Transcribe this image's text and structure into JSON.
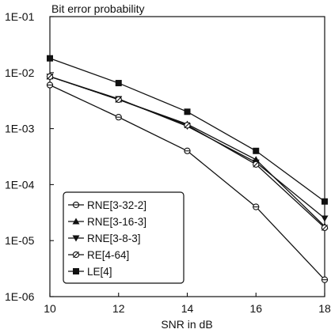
{
  "chart_data": {
    "type": "line",
    "title": "Bit error probability",
    "xlabel": "SNR in dB",
    "ylabel": "",
    "y_scale": "log",
    "xlim": [
      10,
      18
    ],
    "ylim": [
      1e-06,
      0.1
    ],
    "x_ticks": [
      {
        "value": 10,
        "label": "10"
      },
      {
        "value": 12,
        "label": "12"
      },
      {
        "value": 14,
        "label": "14"
      },
      {
        "value": 16,
        "label": "16"
      },
      {
        "value": 18,
        "label": "18"
      }
    ],
    "y_ticks": [
      {
        "value": 0.1,
        "label": "1E-01"
      },
      {
        "value": 0.01,
        "label": "1E-02"
      },
      {
        "value": 0.001,
        "label": "1E-03"
      },
      {
        "value": 0.0001,
        "label": "1E-04"
      },
      {
        "value": 1e-05,
        "label": "1E-05"
      },
      {
        "value": 1e-06,
        "label": "1E-06"
      }
    ],
    "grid": false,
    "legend_position": "bottom-left",
    "x": [
      10,
      12,
      14,
      16,
      18
    ],
    "series": [
      {
        "name": "RNE[3-32-2]",
        "marker": "circle-dash",
        "values": [
          0.006,
          0.0016,
          0.0004,
          4e-05,
          2e-06
        ]
      },
      {
        "name": "RNE[3-16-3]",
        "marker": "triangle-up",
        "values": [
          0.0085,
          0.0033,
          0.0012,
          0.00028,
          1.8e-05
        ]
      },
      {
        "name": "RNE[3-8-3]",
        "marker": "triangle-down",
        "values": [
          0.0085,
          0.0034,
          0.0011,
          0.00025,
          2.5e-05
        ]
      },
      {
        "name": "RE[4-64]",
        "marker": "circle-slash",
        "values": [
          0.0085,
          0.0033,
          0.00115,
          0.00023,
          1.7e-05
        ]
      },
      {
        "name": "LE[4]",
        "marker": "square",
        "values": [
          0.018,
          0.0065,
          0.002,
          0.0004,
          5e-05
        ]
      }
    ],
    "colors": {
      "ink": "#111111",
      "background": "#ffffff"
    }
  }
}
